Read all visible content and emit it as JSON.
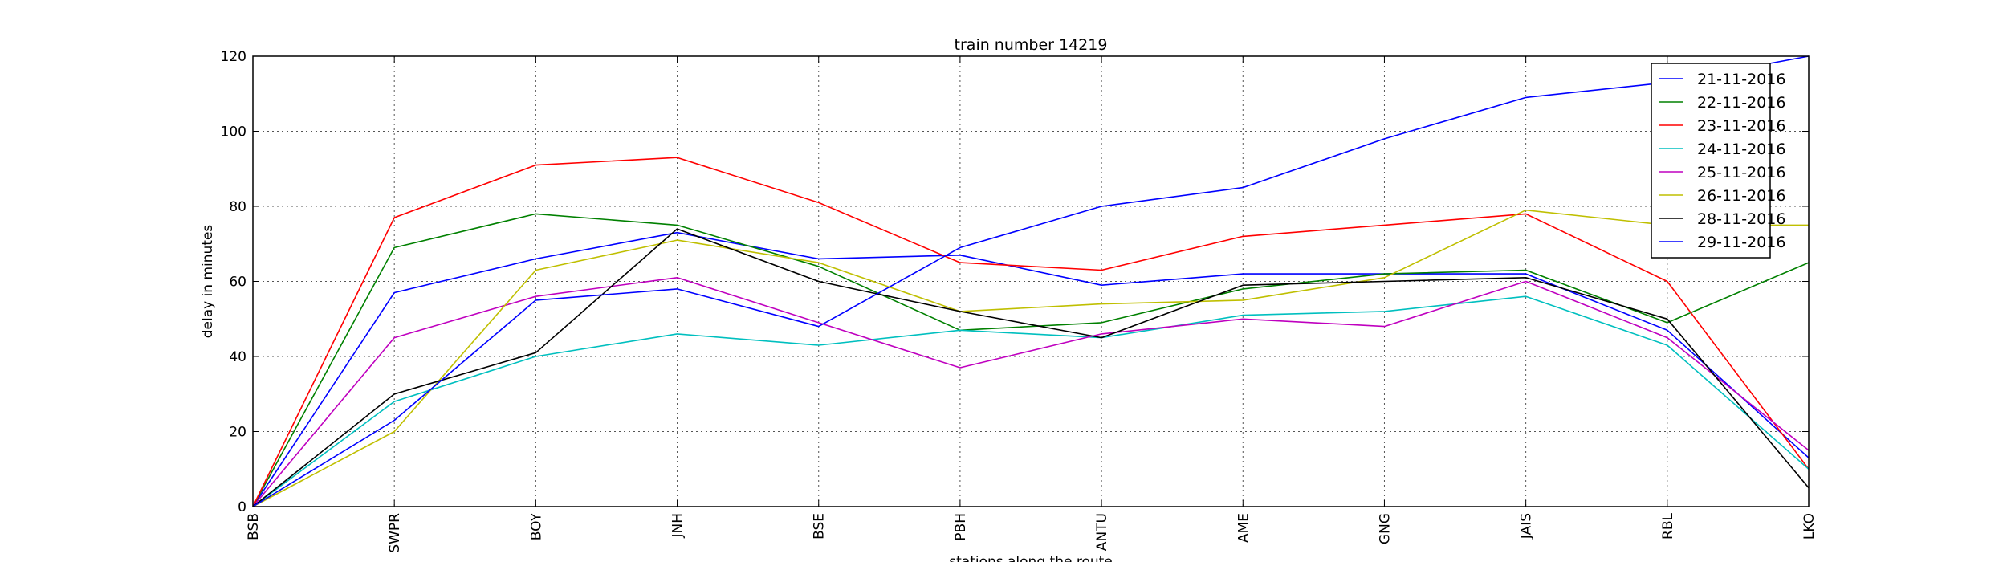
{
  "chart_data": {
    "type": "line",
    "title": "train number 14219",
    "xlabel": "stations along the route",
    "ylabel": "delay in minutes",
    "categories": [
      "BSB",
      "SWPR",
      "BOY",
      "JNH",
      "BSE",
      "PBH",
      "ANTU",
      "AME",
      "GNG",
      "JAIS",
      "RBL",
      "LKO"
    ],
    "ylim": [
      0,
      120
    ],
    "yticks": [
      0,
      20,
      40,
      60,
      80,
      100,
      120
    ],
    "grid": true,
    "legend_position": "top-right",
    "series": [
      {
        "name": "21-11-2016",
        "color": "#0000ff",
        "values": [
          0,
          57,
          66,
          73,
          66,
          67,
          59,
          62,
          62,
          62,
          47,
          13
        ]
      },
      {
        "name": "22-11-2016",
        "color": "#008000",
        "values": [
          0,
          69,
          78,
          75,
          64,
          47,
          49,
          58,
          62,
          63,
          49,
          65
        ]
      },
      {
        "name": "23-11-2016",
        "color": "#ff0000",
        "values": [
          0,
          77,
          91,
          93,
          81,
          65,
          63,
          72,
          75,
          78,
          60,
          10
        ]
      },
      {
        "name": "24-11-2016",
        "color": "#00bfbf",
        "values": [
          0,
          28,
          40,
          46,
          43,
          47,
          45,
          51,
          52,
          56,
          43,
          10
        ]
      },
      {
        "name": "25-11-2016",
        "color": "#bf00bf",
        "values": [
          0,
          45,
          56,
          61,
          49,
          37,
          46,
          50,
          48,
          60,
          45,
          15
        ]
      },
      {
        "name": "26-11-2016",
        "color": "#bfbf00",
        "values": [
          0,
          20,
          63,
          71,
          65,
          52,
          54,
          55,
          61,
          79,
          75,
          75
        ]
      },
      {
        "name": "28-11-2016",
        "color": "#000000",
        "values": [
          0,
          30,
          41,
          74,
          60,
          52,
          45,
          59,
          60,
          61,
          50,
          5
        ]
      },
      {
        "name": "29-11-2016",
        "color": "#0000ff",
        "values": [
          0,
          23,
          55,
          58,
          48,
          69,
          80,
          85,
          98,
          109,
          113,
          120
        ]
      }
    ]
  }
}
